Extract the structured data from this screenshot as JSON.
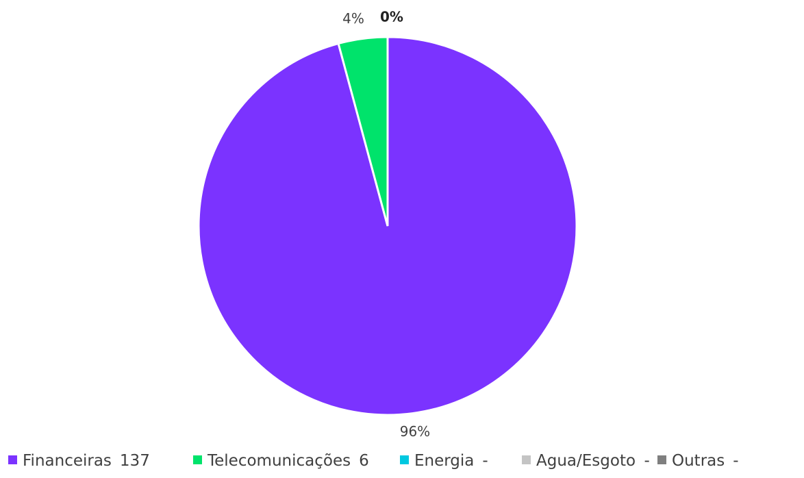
{
  "chart_data": {
    "type": "pie",
    "categories": [
      "Financeiras",
      "Telecomunicações",
      "Energia",
      "Agua/Esgoto",
      "Outras"
    ],
    "values": [
      137,
      6,
      0,
      0,
      0
    ],
    "value_labels": [
      "137",
      "6",
      "-",
      "-",
      "-"
    ],
    "data_labels": [
      "96%",
      "4%",
      "0%",
      null,
      null
    ],
    "colors": [
      "#7b33ff",
      "#00e36b",
      "#00c8e0",
      "#c4c4c4",
      "#7f7f7f"
    ],
    "legend": "bottom"
  }
}
